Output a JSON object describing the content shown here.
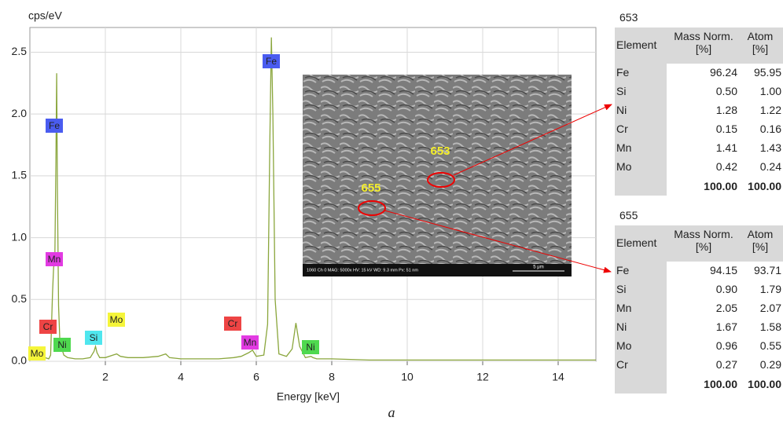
{
  "chart_data": {
    "type": "line",
    "y_label": "cps/eV",
    "x_label": "Energy [keV]",
    "x": [
      0.1,
      0.2,
      0.3,
      0.4,
      0.5,
      0.55,
      0.6,
      0.63,
      0.66,
      0.69,
      0.71,
      0.73,
      0.76,
      0.8,
      0.85,
      0.9,
      1.0,
      1.2,
      1.4,
      1.6,
      1.7,
      1.74,
      1.78,
      1.85,
      2.0,
      2.2,
      2.3,
      2.4,
      2.6,
      3.0,
      3.4,
      3.6,
      3.7,
      4.0,
      4.5,
      5.0,
      5.4,
      5.6,
      5.8,
      5.9,
      6.0,
      6.2,
      6.3,
      6.36,
      6.4,
      6.44,
      6.5,
      6.6,
      6.8,
      6.95,
      7.05,
      7.15,
      7.3,
      7.45,
      7.5,
      7.6,
      8.0,
      9,
      10,
      11,
      12,
      13,
      14,
      15
    ],
    "values": [
      0.02,
      0.03,
      0.05,
      0.03,
      0.02,
      0.05,
      0.55,
      0.76,
      0.8,
      1.6,
      2.33,
      1.4,
      0.45,
      0.12,
      0.1,
      0.05,
      0.03,
      0.02,
      0.02,
      0.03,
      0.08,
      0.12,
      0.07,
      0.03,
      0.03,
      0.05,
      0.06,
      0.04,
      0.03,
      0.03,
      0.04,
      0.06,
      0.03,
      0.02,
      0.02,
      0.02,
      0.03,
      0.04,
      0.07,
      0.09,
      0.04,
      0.05,
      0.3,
      1.8,
      2.62,
      2.0,
      0.5,
      0.06,
      0.04,
      0.1,
      0.31,
      0.12,
      0.03,
      0.04,
      0.03,
      0.02,
      0.02,
      0.01,
      0.01,
      0.01,
      0.01,
      0.01,
      0.01,
      0.01
    ],
    "color": "#8aa63c",
    "xlim": [
      0,
      15
    ],
    "ylim": [
      0,
      2.7
    ],
    "xticks": [
      2,
      4,
      6,
      8,
      10,
      12,
      14
    ],
    "yticks": [
      {
        "value": 0,
        "label": "0.0"
      },
      0.5,
      {
        "value": 1,
        "label": "1.0"
      },
      1.5,
      {
        "value": 2,
        "label": "2.0"
      },
      2.5
    ],
    "grid": true,
    "annotations": [
      {
        "text": "Fe",
        "color": "#4a5cf0"
      },
      {
        "text": "Mn",
        "color": "#e23be2"
      },
      {
        "text": "Cr",
        "color": "#ee4444"
      },
      {
        "text": "Ni",
        "color": "#4fd94f"
      },
      {
        "text": "Mo",
        "color": "#f5f53a"
      },
      {
        "text": "Si",
        "color": "#4fe6ee"
      },
      {
        "text": "Mo",
        "color": "#f5f53a"
      },
      {
        "text": "Cr",
        "color": "#ee4444"
      },
      {
        "text": "Mn",
        "color": "#e23be2"
      },
      {
        "text": "Fe",
        "color": "#4a5cf0"
      },
      {
        "text": "Ni",
        "color": "#4fd94f"
      }
    ]
  },
  "image": {
    "spots": [
      "653",
      "655"
    ],
    "info": "1060  Ch 0   MAG: 5000x   HV: 15 kV   WD: 9.3 mm   Px: 51 nm",
    "scale": "5 μm"
  },
  "tables": [
    {
      "title": "653",
      "headers": [
        "Element",
        "Mass Norm. [%]",
        "Atom [%]"
      ],
      "rows": [
        [
          "Fe",
          "96.24",
          "95.95"
        ],
        [
          "Si",
          "0.50",
          "1.00"
        ],
        [
          "Ni",
          "1.28",
          "1.22"
        ],
        [
          "Cr",
          "0.15",
          "0.16"
        ],
        [
          "Mn",
          "1.41",
          "1.43"
        ],
        [
          "Mo",
          "0.42",
          "0.24"
        ]
      ],
      "total": [
        "100.00",
        "100.00"
      ]
    },
    {
      "title": "655",
      "headers": [
        "Element",
        "Mass Norm. [%]",
        "Atom [%]"
      ],
      "rows": [
        [
          "Fe",
          "94.15",
          "93.71"
        ],
        [
          "Si",
          "0.90",
          "1.79"
        ],
        [
          "Mn",
          "2.05",
          "2.07"
        ],
        [
          "Ni",
          "1.67",
          "1.58"
        ],
        [
          "Mo",
          "0.96",
          "0.55"
        ],
        [
          "Cr",
          "0.27",
          "0.29"
        ]
      ],
      "total": [
        "100.00",
        "100.00"
      ]
    }
  ],
  "caption": "a"
}
